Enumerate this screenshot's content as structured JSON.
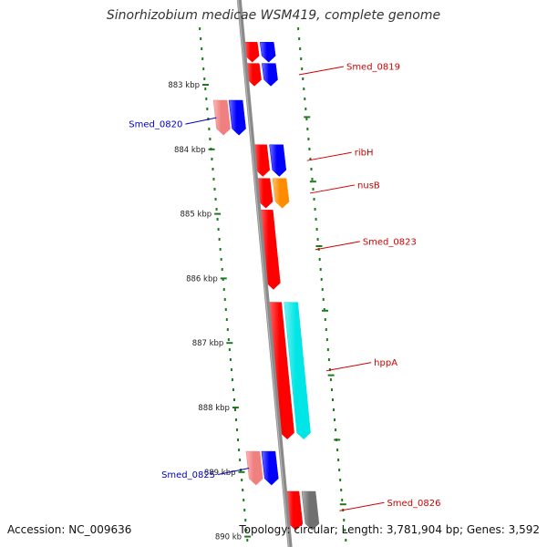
{
  "title": "Sinorhizobium medicae WSM419, complete genome",
  "footer": {
    "accession": "Accession: NC_009636",
    "summary": "Topology: circular; Length: 3,781,904 bp; Genes: 3,592"
  },
  "colors": {
    "backbone": "#8a8a8a",
    "tick": "#1f7a1f",
    "red": "#ff0000",
    "pink": "#f08080",
    "blue": "#0000ff",
    "orange": "#ff8c00",
    "cyan": "#00e5e5",
    "gray": "#707070",
    "label_red": "#d00000",
    "label_blue": "#0000c0"
  },
  "kbp_ticks": [
    {
      "value": 883,
      "label": "883 kbp"
    },
    {
      "value": 884,
      "label": "884 kbp"
    },
    {
      "value": 885,
      "label": "885 kbp"
    },
    {
      "value": 886,
      "label": "886 kbp"
    },
    {
      "value": 887,
      "label": "887 kbp"
    },
    {
      "value": 888,
      "label": "888 kbp"
    },
    {
      "value": 889,
      "label": "889 kbp"
    },
    {
      "value": 890,
      "label": "890 kb"
    }
  ],
  "genes": [
    {
      "label": "",
      "color": "red",
      "ring": 0,
      "start": 882.34,
      "end": 882.65
    },
    {
      "label": "",
      "color": "blue",
      "ring": 1,
      "start": 882.34,
      "end": 882.65
    },
    {
      "label": "Smed_0819",
      "color": "red",
      "ring": 0,
      "start": 882.67,
      "end": 883.02,
      "label_color": "label_red",
      "side": "right"
    },
    {
      "label": "",
      "color": "blue",
      "ring": 1,
      "start": 882.67,
      "end": 883.02
    },
    {
      "label": "Smed_0820",
      "color": "pink",
      "ring": -2,
      "start": 883.24,
      "end": 883.78,
      "label_color": "label_blue",
      "side": "left"
    },
    {
      "label": "",
      "color": "blue",
      "ring": -1,
      "start": 883.24,
      "end": 883.78
    },
    {
      "label": "ribH",
      "color": "red",
      "ring": 0,
      "start": 883.93,
      "end": 884.42,
      "label_color": "label_red",
      "side": "right"
    },
    {
      "label": "",
      "color": "blue",
      "ring": 1,
      "start": 883.93,
      "end": 884.42
    },
    {
      "label": "nusB",
      "color": "red",
      "ring": 0,
      "start": 884.45,
      "end": 884.91,
      "label_color": "label_red",
      "side": "right"
    },
    {
      "label": "",
      "color": "orange",
      "ring": 1,
      "start": 884.45,
      "end": 884.91
    },
    {
      "label": "Smed_0823",
      "color": "red",
      "ring": 0,
      "start": 884.94,
      "end": 886.17,
      "label_color": "label_red",
      "side": "right"
    },
    {
      "label": "hppA",
      "color": "red",
      "ring": 0,
      "start": 886.37,
      "end": 888.49,
      "label_color": "label_red",
      "side": "right"
    },
    {
      "label": "",
      "color": "cyan",
      "ring": 1,
      "start": 886.37,
      "end": 888.49
    },
    {
      "label": "Smed_0825",
      "color": "pink",
      "ring": -2,
      "start": 888.68,
      "end": 889.2,
      "label_color": "label_blue",
      "side": "left"
    },
    {
      "label": "",
      "color": "blue",
      "ring": -1,
      "start": 888.68,
      "end": 889.2
    },
    {
      "label": "Smed_0826",
      "color": "red",
      "ring": 0,
      "start": 889.3,
      "end": 889.9,
      "label_color": "label_red",
      "side": "right"
    },
    {
      "label": "",
      "color": "gray",
      "ring": 1,
      "start": 889.3,
      "end": 889.9
    }
  ]
}
